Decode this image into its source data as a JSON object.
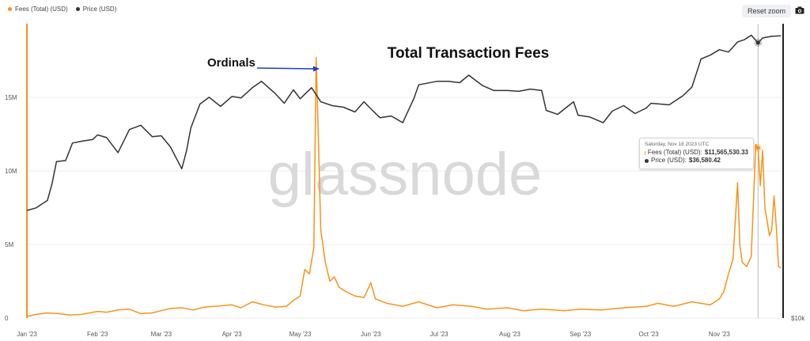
{
  "legend": [
    {
      "label": "Fees (Total) (USD)",
      "color": "#f7931a"
    },
    {
      "label": "Price (USD)",
      "color": "#333333"
    }
  ],
  "toolbar": {
    "reset_zoom_label": "Reset zoom",
    "camera_icon": "camera-icon"
  },
  "watermark": "glassnode",
  "annotations": {
    "title": "Total Transaction Fees",
    "ordinals_label": "Ordinals",
    "arrow_color": "#1f3ad6"
  },
  "tooltip": {
    "date": "Saturday, Nov 18 2023 UTC",
    "fees_label": "Fees (Total) (USD): ",
    "fees_value": "$11,565,530.33",
    "price_label": "Price (USD): ",
    "price_value": "$36,580.42"
  },
  "chart_data": {
    "type": "line",
    "x_tick_labels": [
      "Jan '23",
      "Feb '23",
      "Mar '23",
      "Apr '23",
      "May '23",
      "Jun '23",
      "Jul '23",
      "Aug '23",
      "Sep '23",
      "Oct '23",
      "Nov '23"
    ],
    "x_tick_dates": [
      "2023-01-01",
      "2023-02-01",
      "2023-03-01",
      "2023-04-01",
      "2023-05-01",
      "2023-06-01",
      "2023-07-01",
      "2023-08-01",
      "2023-09-01",
      "2023-10-01",
      "2023-11-01"
    ],
    "xlim": [
      "2023-01-01",
      "2023-11-29"
    ],
    "y_left": {
      "ticks": [
        0,
        5000000,
        10000000,
        15000000
      ],
      "tick_labels": [
        "0",
        "5M",
        "10M",
        "15M"
      ],
      "lim": [
        0,
        20000000
      ]
    },
    "y_right": {
      "tick_labels": [
        "$10k"
      ],
      "scale": "log"
    },
    "grid": "horizontal",
    "legend_position": "top-left",
    "crosshair_date": "2023-11-18",
    "series": [
      {
        "name": "Fees (Total) (USD)",
        "color": "#f7931a",
        "axis": "left",
        "points": [
          [
            "2023-01-01",
            100000
          ],
          [
            "2023-01-05",
            250000
          ],
          [
            "2023-01-10",
            350000
          ],
          [
            "2023-01-15",
            300000
          ],
          [
            "2023-01-20",
            200000
          ],
          [
            "2023-01-25",
            250000
          ],
          [
            "2023-02-01",
            450000
          ],
          [
            "2023-02-05",
            400000
          ],
          [
            "2023-02-10",
            550000
          ],
          [
            "2023-02-15",
            600000
          ],
          [
            "2023-02-20",
            300000
          ],
          [
            "2023-02-25",
            350000
          ],
          [
            "2023-03-01",
            500000
          ],
          [
            "2023-03-05",
            650000
          ],
          [
            "2023-03-10",
            700000
          ],
          [
            "2023-03-15",
            550000
          ],
          [
            "2023-03-20",
            750000
          ],
          [
            "2023-03-25",
            800000
          ],
          [
            "2023-04-01",
            900000
          ],
          [
            "2023-04-05",
            700000
          ],
          [
            "2023-04-10",
            1100000
          ],
          [
            "2023-04-15",
            900000
          ],
          [
            "2023-04-20",
            750000
          ],
          [
            "2023-04-25",
            800000
          ],
          [
            "2023-04-28",
            1200000
          ],
          [
            "2023-05-01",
            1500000
          ],
          [
            "2023-05-03",
            3300000
          ],
          [
            "2023-05-05",
            3000000
          ],
          [
            "2023-05-07",
            4800000
          ],
          [
            "2023-05-08",
            17700000
          ],
          [
            "2023-05-09",
            12000000
          ],
          [
            "2023-05-10",
            6000000
          ],
          [
            "2023-05-12",
            3800000
          ],
          [
            "2023-05-14",
            2500000
          ],
          [
            "2023-05-16",
            2800000
          ],
          [
            "2023-05-18",
            2100000
          ],
          [
            "2023-05-21",
            1800000
          ],
          [
            "2023-05-25",
            1500000
          ],
          [
            "2023-05-29",
            1400000
          ],
          [
            "2023-06-01",
            2400000
          ],
          [
            "2023-06-03",
            1300000
          ],
          [
            "2023-06-08",
            1000000
          ],
          [
            "2023-06-15",
            800000
          ],
          [
            "2023-06-22",
            1100000
          ],
          [
            "2023-06-30",
            700000
          ],
          [
            "2023-07-07",
            900000
          ],
          [
            "2023-07-15",
            800000
          ],
          [
            "2023-07-22",
            600000
          ],
          [
            "2023-07-31",
            700000
          ],
          [
            "2023-08-07",
            500000
          ],
          [
            "2023-08-15",
            600000
          ],
          [
            "2023-08-25",
            500000
          ],
          [
            "2023-09-01",
            600000
          ],
          [
            "2023-09-10",
            550000
          ],
          [
            "2023-09-20",
            700000
          ],
          [
            "2023-09-30",
            800000
          ],
          [
            "2023-10-05",
            1000000
          ],
          [
            "2023-10-12",
            800000
          ],
          [
            "2023-10-20",
            1100000
          ],
          [
            "2023-10-28",
            900000
          ],
          [
            "2023-11-01",
            1300000
          ],
          [
            "2023-11-03",
            1800000
          ],
          [
            "2023-11-05",
            3000000
          ],
          [
            "2023-11-07",
            4000000
          ],
          [
            "2023-11-09",
            9200000
          ],
          [
            "2023-11-10",
            5000000
          ],
          [
            "2023-11-11",
            3800000
          ],
          [
            "2023-11-13",
            3500000
          ],
          [
            "2023-11-15",
            4200000
          ],
          [
            "2023-11-16",
            8000000
          ],
          [
            "2023-11-17",
            11800000
          ],
          [
            "2023-11-18",
            11565530
          ],
          [
            "2023-11-19",
            9000000
          ],
          [
            "2023-11-20",
            11400000
          ],
          [
            "2023-11-21",
            7500000
          ],
          [
            "2023-11-22",
            6600000
          ],
          [
            "2023-11-23",
            5600000
          ],
          [
            "2023-11-24",
            6000000
          ],
          [
            "2023-11-25",
            8300000
          ],
          [
            "2023-11-26",
            6200000
          ],
          [
            "2023-11-27",
            3500000
          ],
          [
            "2023-11-28",
            3400000
          ]
        ]
      },
      {
        "name": "Price (USD)",
        "color": "#333333",
        "axis": "right",
        "points": [
          [
            "2023-01-01",
            16600
          ],
          [
            "2023-01-05",
            16800
          ],
          [
            "2023-01-10",
            17400
          ],
          [
            "2023-01-12",
            18800
          ],
          [
            "2023-01-14",
            20900
          ],
          [
            "2023-01-18",
            21000
          ],
          [
            "2023-01-21",
            22800
          ],
          [
            "2023-01-25",
            23000
          ],
          [
            "2023-01-30",
            23200
          ],
          [
            "2023-02-01",
            23700
          ],
          [
            "2023-02-05",
            23400
          ],
          [
            "2023-02-10",
            21800
          ],
          [
            "2023-02-15",
            24300
          ],
          [
            "2023-02-20",
            24800
          ],
          [
            "2023-02-25",
            23500
          ],
          [
            "2023-03-01",
            23600
          ],
          [
            "2023-03-05",
            22400
          ],
          [
            "2023-03-10",
            20200
          ],
          [
            "2023-03-12",
            21900
          ],
          [
            "2023-03-14",
            24500
          ],
          [
            "2023-03-18",
            27400
          ],
          [
            "2023-03-22",
            28300
          ],
          [
            "2023-03-27",
            27100
          ],
          [
            "2023-04-01",
            28400
          ],
          [
            "2023-04-05",
            28200
          ],
          [
            "2023-04-10",
            29600
          ],
          [
            "2023-04-14",
            30500
          ],
          [
            "2023-04-20",
            28800
          ],
          [
            "2023-04-24",
            27500
          ],
          [
            "2023-04-28",
            29300
          ],
          [
            "2023-05-01",
            28100
          ],
          [
            "2023-05-06",
            29600
          ],
          [
            "2023-05-10",
            27700
          ],
          [
            "2023-05-15",
            27200
          ],
          [
            "2023-05-20",
            27000
          ],
          [
            "2023-05-25",
            26400
          ],
          [
            "2023-05-29",
            27700
          ],
          [
            "2023-06-01",
            26800
          ],
          [
            "2023-06-05",
            25700
          ],
          [
            "2023-06-10",
            25900
          ],
          [
            "2023-06-15",
            25100
          ],
          [
            "2023-06-20",
            28200
          ],
          [
            "2023-06-22",
            30000
          ],
          [
            "2023-06-30",
            30500
          ],
          [
            "2023-07-05",
            30500
          ],
          [
            "2023-07-10",
            30300
          ],
          [
            "2023-07-14",
            31400
          ],
          [
            "2023-07-20",
            29900
          ],
          [
            "2023-07-25",
            29200
          ],
          [
            "2023-07-31",
            29200
          ],
          [
            "2023-08-05",
            29100
          ],
          [
            "2023-08-10",
            29400
          ],
          [
            "2023-08-15",
            29200
          ],
          [
            "2023-08-17",
            26600
          ],
          [
            "2023-08-22",
            26100
          ],
          [
            "2023-08-29",
            27700
          ],
          [
            "2023-08-31",
            26000
          ],
          [
            "2023-09-05",
            25800
          ],
          [
            "2023-09-11",
            25100
          ],
          [
            "2023-09-15",
            26500
          ],
          [
            "2023-09-20",
            27200
          ],
          [
            "2023-09-25",
            26200
          ],
          [
            "2023-09-30",
            26900
          ],
          [
            "2023-10-02",
            27500
          ],
          [
            "2023-10-10",
            27300
          ],
          [
            "2023-10-16",
            28500
          ],
          [
            "2023-10-20",
            29700
          ],
          [
            "2023-10-24",
            33900
          ],
          [
            "2023-10-28",
            34500
          ],
          [
            "2023-11-01",
            35400
          ],
          [
            "2023-11-05",
            35000
          ],
          [
            "2023-11-09",
            36700
          ],
          [
            "2023-11-12",
            37100
          ],
          [
            "2023-11-15",
            37900
          ],
          [
            "2023-11-18",
            36580
          ],
          [
            "2023-11-20",
            37400
          ],
          [
            "2023-11-24",
            37700
          ],
          [
            "2023-11-28",
            37800
          ]
        ]
      }
    ]
  }
}
